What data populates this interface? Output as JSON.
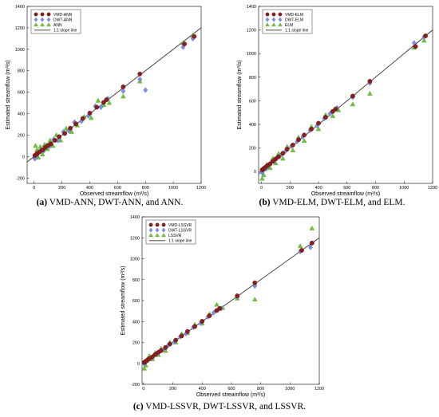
{
  "colors": {
    "vmd": "#8b1e1e",
    "dwt": "#7d8fe0",
    "single": "#6ec23a",
    "line": "#333333"
  },
  "chart_data": [
    {
      "type": "scatter",
      "xlabel": "Observed streamflow (m³/s)",
      "ylabel": "Estimated streamflow (m³/s)",
      "xlim": [
        -50,
        1200
      ],
      "ylim": [
        -250,
        1400
      ],
      "xticks": [
        0,
        200,
        400,
        600,
        800,
        1000,
        1200
      ],
      "yticks": [
        -200,
        0,
        200,
        400,
        600,
        800,
        1000,
        1200,
        1400
      ],
      "legend_position": "top-left",
      "series": [
        {
          "name": "VMD-ANN",
          "marker": "circle",
          "color": "#8b1e1e",
          "points": [
            [
              5,
              10
            ],
            [
              15,
              20
            ],
            [
              25,
              30
            ],
            [
              40,
              45
            ],
            [
              60,
              62
            ],
            [
              80,
              85
            ],
            [
              100,
              105
            ],
            [
              120,
              118
            ],
            [
              150,
              152
            ],
            [
              180,
              185
            ],
            [
              220,
              215
            ],
            [
              260,
              265
            ],
            [
              300,
              305
            ],
            [
              350,
              355
            ],
            [
              400,
              405
            ],
            [
              450,
              460
            ],
            [
              500,
              505
            ],
            [
              520,
              530
            ],
            [
              640,
              650
            ],
            [
              760,
              770
            ],
            [
              1080,
              1050
            ],
            [
              1150,
              1120
            ]
          ]
        },
        {
          "name": "DWT-ANN",
          "marker": "diamond",
          "color": "#7d8fe0",
          "points": [
            [
              5,
              -20
            ],
            [
              10,
              -10
            ],
            [
              20,
              15
            ],
            [
              35,
              40
            ],
            [
              50,
              60
            ],
            [
              70,
              55
            ],
            [
              90,
              100
            ],
            [
              110,
              95
            ],
            [
              140,
              160
            ],
            [
              170,
              150
            ],
            [
              210,
              230
            ],
            [
              250,
              240
            ],
            [
              290,
              320
            ],
            [
              340,
              330
            ],
            [
              390,
              380
            ],
            [
              440,
              470
            ],
            [
              480,
              460
            ],
            [
              530,
              540
            ],
            [
              640,
              610
            ],
            [
              760,
              720
            ],
            [
              800,
              620
            ],
            [
              1070,
              1020
            ],
            [
              1140,
              1100
            ]
          ]
        },
        {
          "name": "ANN",
          "marker": "triangle",
          "color": "#6ec23a",
          "points": [
            [
              10,
              100
            ],
            [
              20,
              60
            ],
            [
              30,
              -10
            ],
            [
              45,
              90
            ],
            [
              60,
              20
            ],
            [
              75,
              110
            ],
            [
              95,
              70
            ],
            [
              115,
              150
            ],
            [
              135,
              100
            ],
            [
              160,
              200
            ],
            [
              190,
              150
            ],
            [
              230,
              260
            ],
            [
              270,
              230
            ],
            [
              310,
              290
            ],
            [
              360,
              370
            ],
            [
              410,
              360
            ],
            [
              460,
              520
            ],
            [
              500,
              480
            ],
            [
              540,
              500
            ],
            [
              640,
              560
            ],
            [
              760,
              700
            ],
            [
              1070,
              1060
            ],
            [
              1140,
              1130
            ]
          ]
        },
        {
          "name": "1:1 slope line",
          "marker": "line",
          "color": "#333333",
          "points": [
            [
              -50,
              -50
            ],
            [
              1200,
              1200
            ]
          ]
        }
      ]
    },
    {
      "type": "scatter",
      "xlabel": "Observed streamflow (m³/s)",
      "ylabel": "Estimated streamflow (m³/s)",
      "xlim": [
        -20,
        1200
      ],
      "ylim": [
        -100,
        1400
      ],
      "xticks": [
        0,
        200,
        400,
        600,
        800,
        1000,
        1200
      ],
      "yticks": [
        0,
        200,
        400,
        600,
        800,
        1000,
        1200,
        1400
      ],
      "legend_position": "top-left",
      "series": [
        {
          "name": "VMD-ELM",
          "marker": "circle",
          "color": "#8b1e1e",
          "points": [
            [
              5,
              15
            ],
            [
              15,
              25
            ],
            [
              25,
              35
            ],
            [
              40,
              50
            ],
            [
              60,
              65
            ],
            [
              80,
              88
            ],
            [
              100,
              108
            ],
            [
              120,
              125
            ],
            [
              150,
              155
            ],
            [
              180,
              190
            ],
            [
              220,
              225
            ],
            [
              260,
              270
            ],
            [
              300,
              310
            ],
            [
              350,
              360
            ],
            [
              400,
              410
            ],
            [
              450,
              460
            ],
            [
              500,
              510
            ],
            [
              520,
              530
            ],
            [
              640,
              640
            ],
            [
              760,
              765
            ],
            [
              1080,
              1060
            ],
            [
              1150,
              1150
            ]
          ]
        },
        {
          "name": "DWT-ELM",
          "marker": "diamond",
          "color": "#7d8fe0",
          "points": [
            [
              5,
              -10
            ],
            [
              10,
              5
            ],
            [
              20,
              20
            ],
            [
              35,
              30
            ],
            [
              50,
              55
            ],
            [
              70,
              80
            ],
            [
              90,
              85
            ],
            [
              110,
              120
            ],
            [
              140,
              145
            ],
            [
              170,
              175
            ],
            [
              210,
              215
            ],
            [
              250,
              255
            ],
            [
              290,
              295
            ],
            [
              340,
              350
            ],
            [
              390,
              390
            ],
            [
              440,
              450
            ],
            [
              480,
              490
            ],
            [
              530,
              540
            ],
            [
              640,
              630
            ],
            [
              760,
              750
            ],
            [
              1070,
              1090
            ],
            [
              1140,
              1140
            ]
          ]
        },
        {
          "name": "ELM",
          "marker": "triangle",
          "color": "#6ec23a",
          "points": [
            [
              5,
              -60
            ],
            [
              15,
              -30
            ],
            [
              25,
              20
            ],
            [
              40,
              60
            ],
            [
              60,
              30
            ],
            [
              80,
              110
            ],
            [
              100,
              70
            ],
            [
              120,
              150
            ],
            [
              150,
              110
            ],
            [
              180,
              210
            ],
            [
              220,
              180
            ],
            [
              260,
              290
            ],
            [
              300,
              260
            ],
            [
              350,
              380
            ],
            [
              400,
              360
            ],
            [
              450,
              480
            ],
            [
              500,
              470
            ],
            [
              540,
              520
            ],
            [
              640,
              570
            ],
            [
              760,
              660
            ],
            [
              1070,
              1050
            ],
            [
              1140,
              1110
            ]
          ]
        },
        {
          "name": "1:1 slope line",
          "marker": "line",
          "color": "#333333",
          "points": [
            [
              -20,
              -20
            ],
            [
              1200,
              1200
            ]
          ]
        }
      ]
    },
    {
      "type": "scatter",
      "xlabel": "Observed streamflow (m³/s)",
      "ylabel": "Estimated streamflow (m³/s)",
      "xlim": [
        -10,
        1200
      ],
      "ylim": [
        -200,
        1400
      ],
      "xticks": [
        0,
        200,
        400,
        600,
        800,
        1000,
        1200
      ],
      "yticks": [
        -200,
        0,
        200,
        400,
        600,
        800,
        1000,
        1200,
        1400
      ],
      "legend_position": "top-left",
      "series": [
        {
          "name": "VMD-LSSVR",
          "marker": "circle",
          "color": "#8b1e1e",
          "points": [
            [
              5,
              10
            ],
            [
              15,
              20
            ],
            [
              25,
              30
            ],
            [
              40,
              45
            ],
            [
              60,
              62
            ],
            [
              80,
              85
            ],
            [
              100,
              105
            ],
            [
              120,
              122
            ],
            [
              150,
              152
            ],
            [
              180,
              185
            ],
            [
              220,
              222
            ],
            [
              260,
              262
            ],
            [
              300,
              305
            ],
            [
              350,
              352
            ],
            [
              400,
              402
            ],
            [
              450,
              455
            ],
            [
              500,
              505
            ],
            [
              520,
              525
            ],
            [
              640,
              645
            ],
            [
              760,
              770
            ],
            [
              1080,
              1080
            ],
            [
              1150,
              1150
            ]
          ]
        },
        {
          "name": "DWT-LSSVR",
          "marker": "diamond",
          "color": "#7d8fe0",
          "points": [
            [
              5,
              -5
            ],
            [
              10,
              10
            ],
            [
              20,
              18
            ],
            [
              35,
              38
            ],
            [
              50,
              48
            ],
            [
              70,
              75
            ],
            [
              90,
              88
            ],
            [
              110,
              115
            ],
            [
              140,
              138
            ],
            [
              170,
              175
            ],
            [
              210,
              205
            ],
            [
              250,
              255
            ],
            [
              290,
              285
            ],
            [
              340,
              345
            ],
            [
              390,
              385
            ],
            [
              440,
              445
            ],
            [
              480,
              485
            ],
            [
              530,
              525
            ],
            [
              640,
              635
            ],
            [
              760,
              740
            ],
            [
              1070,
              1070
            ],
            [
              1140,
              1110
            ]
          ]
        },
        {
          "name": "LSSVR",
          "marker": "triangle",
          "color": "#6ec23a",
          "points": [
            [
              5,
              -50
            ],
            [
              15,
              -20
            ],
            [
              25,
              40
            ],
            [
              40,
              70
            ],
            [
              60,
              40
            ],
            [
              80,
              100
            ],
            [
              100,
              80
            ],
            [
              120,
              140
            ],
            [
              150,
              120
            ],
            [
              180,
              200
            ],
            [
              220,
              200
            ],
            [
              260,
              280
            ],
            [
              300,
              290
            ],
            [
              350,
              370
            ],
            [
              400,
              380
            ],
            [
              450,
              470
            ],
            [
              500,
              560
            ],
            [
              540,
              530
            ],
            [
              640,
              620
            ],
            [
              760,
              610
            ],
            [
              1070,
              1120
            ],
            [
              1150,
              1290
            ]
          ]
        },
        {
          "name": "1:1 slope line",
          "marker": "line",
          "color": "#333333",
          "points": [
            [
              -10,
              -10
            ],
            [
              1200,
              1200
            ]
          ]
        }
      ]
    }
  ],
  "captions": [
    {
      "label": "(a)",
      "text": " VMD-ANN, DWT-ANN, and ANN."
    },
    {
      "label": "(b)",
      "text": " VMD-ELM, DWT-ELM, and ELM."
    },
    {
      "label": "(c)",
      "text": " VMD-LSSVR, DWT-LSSVR, and LSSVR."
    }
  ]
}
